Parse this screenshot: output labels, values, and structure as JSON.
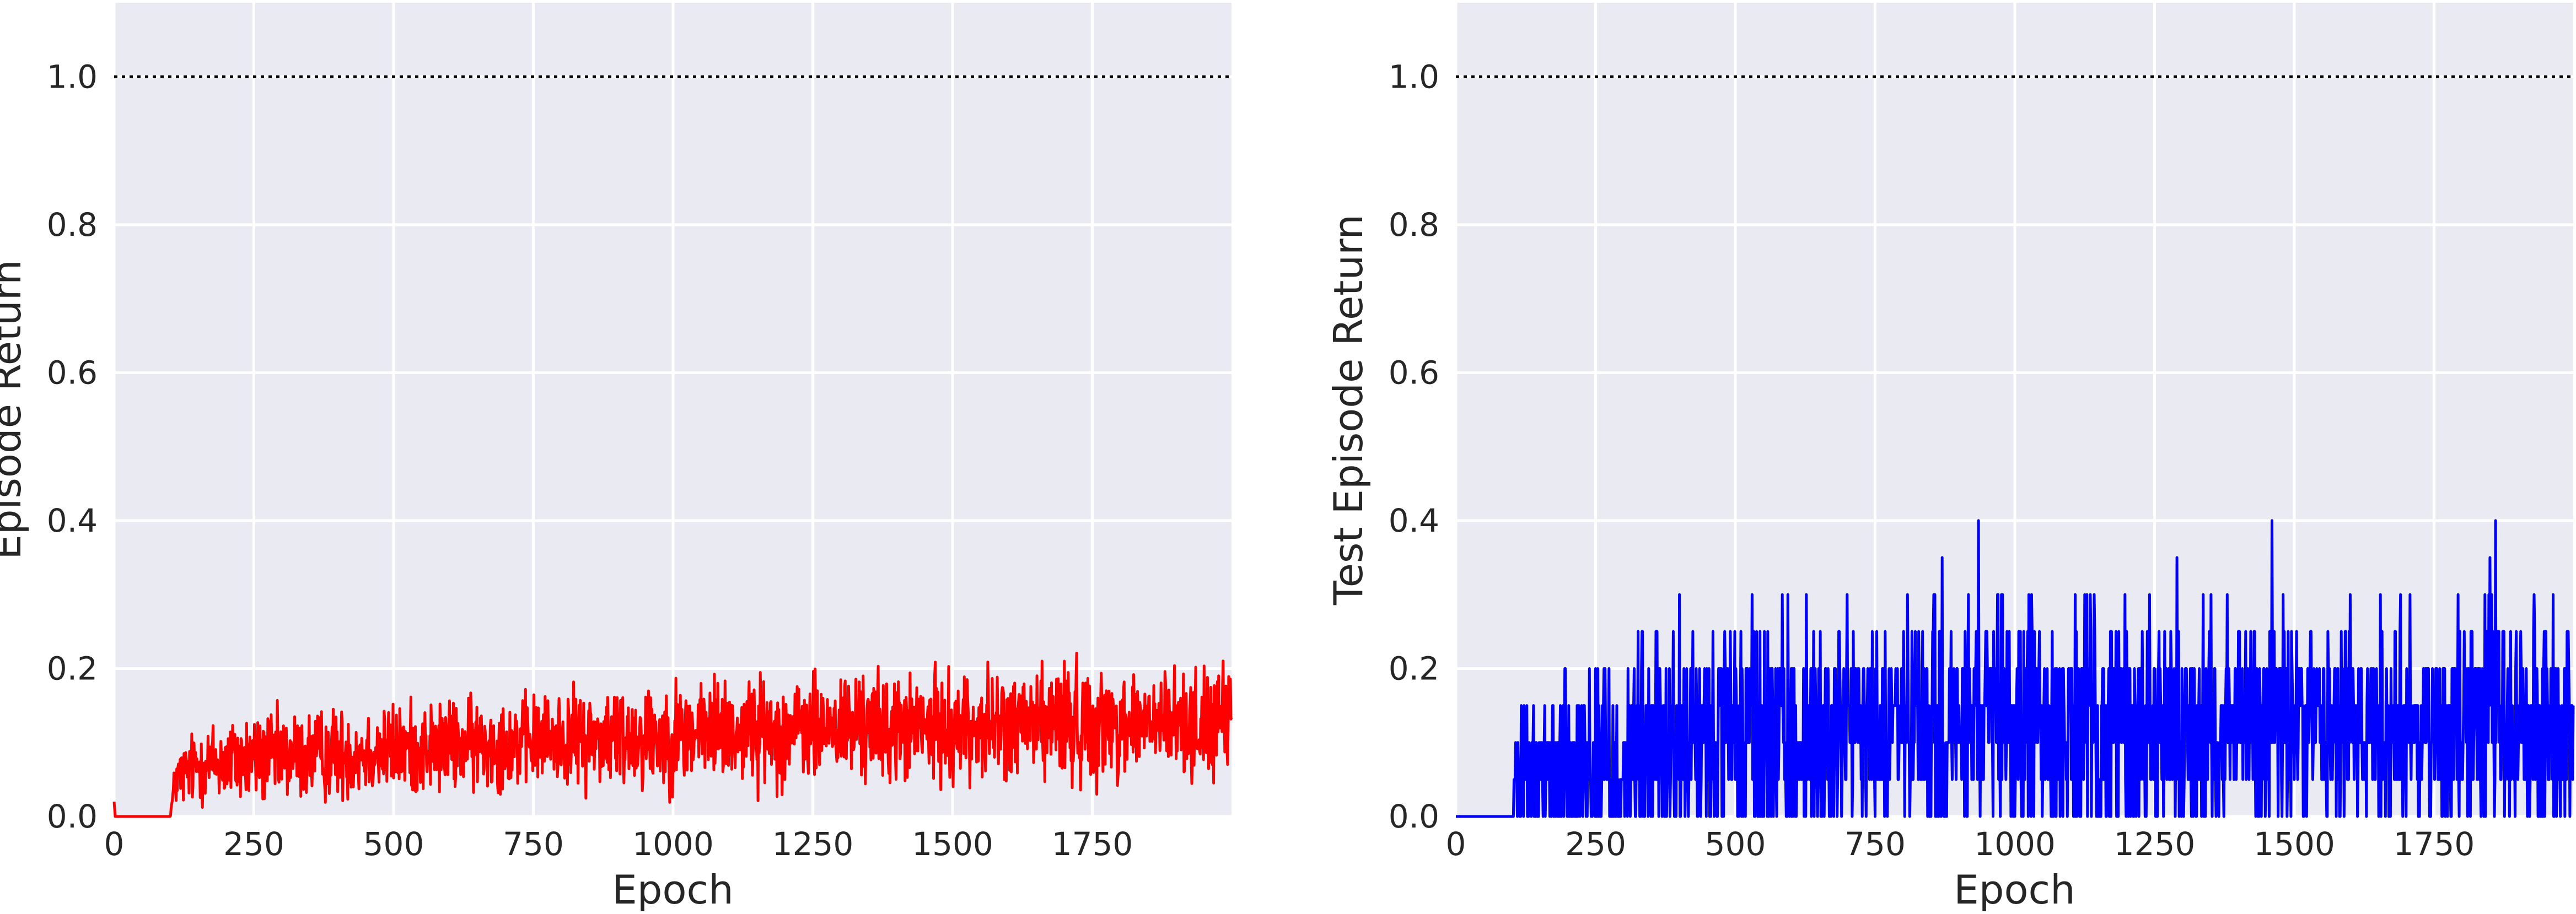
{
  "chart_data": [
    {
      "type": "line",
      "title": "",
      "xlabel": "Epoch",
      "ylabel": "Episode Return",
      "xlim": [
        0,
        1999
      ],
      "ylim": [
        0.0,
        1.1
      ],
      "xticks": [
        0,
        250,
        500,
        750,
        1000,
        1250,
        1500,
        1750
      ],
      "yticks": [
        0.0,
        0.2,
        0.4,
        0.6,
        0.8,
        1.0
      ],
      "xtick_labels": [
        "0",
        "250",
        "500",
        "750",
        "1000",
        "1250",
        "1500",
        "1750"
      ],
      "ytick_labels": [
        "0.0",
        "0.2",
        "0.4",
        "0.6",
        "0.8",
        "1.0"
      ],
      "grid": true,
      "reference_line": {
        "y": 1.0,
        "style": "dotted",
        "color": "#000000"
      },
      "series": [
        {
          "color": "#ff0000",
          "style": "noisy",
          "x": [
            0,
            2,
            4,
            100,
            110,
            150,
            200,
            300,
            400,
            500,
            600,
            700,
            800,
            900,
            1000,
            1100,
            1200,
            1300,
            1400,
            1500,
            1600,
            1700,
            1800,
            1900,
            1999
          ],
          "y": [
            0.02,
            0.0,
            0.0,
            0.0,
            0.05,
            0.07,
            0.075,
            0.08,
            0.085,
            0.09,
            0.095,
            0.1,
            0.105,
            0.108,
            0.11,
            0.115,
            0.115,
            0.12,
            0.118,
            0.12,
            0.122,
            0.125,
            0.125,
            0.125,
            0.125
          ],
          "spread": [
            0.0,
            0.0,
            0.0,
            0.0,
            0.02,
            0.025,
            0.03,
            0.03,
            0.03,
            0.03,
            0.03,
            0.03,
            0.03,
            0.035,
            0.035,
            0.035,
            0.035,
            0.035,
            0.035,
            0.035,
            0.035,
            0.04,
            0.035,
            0.035,
            0.035
          ],
          "peaks": [
            [
              1660,
              0.21
            ],
            [
              1700,
              0.21
            ],
            [
              1340,
              0.19
            ],
            [
              1080,
              0.18
            ],
            [
              1050,
              0.18
            ]
          ]
        }
      ]
    },
    {
      "type": "line",
      "title": "",
      "xlabel": "Epoch",
      "ylabel": "Test Episode Return",
      "xlim": [
        0,
        1999
      ],
      "ylim": [
        0.0,
        1.1
      ],
      "xticks": [
        0,
        250,
        500,
        750,
        1000,
        1250,
        1500,
        1750
      ],
      "yticks": [
        0.0,
        0.2,
        0.4,
        0.6,
        0.8,
        1.0
      ],
      "xtick_labels": [
        "0",
        "250",
        "500",
        "750",
        "1000",
        "1250",
        "1500",
        "1750"
      ],
      "ytick_labels": [
        "0.0",
        "0.2",
        "0.4",
        "0.6",
        "0.8",
        "1.0"
      ],
      "grid": true,
      "reference_line": {
        "y": 1.0,
        "style": "dotted",
        "color": "#000000"
      },
      "series": [
        {
          "color": "#0000ff",
          "style": "quantized",
          "step": 0.05,
          "x": [
            0,
            100,
            110,
            150,
            200,
            300,
            400,
            500,
            750,
            1000,
            1250,
            1500,
            1750,
            1999
          ],
          "y": [
            0.0,
            0.0,
            0.04,
            0.06,
            0.07,
            0.08,
            0.09,
            0.1,
            0.11,
            0.12,
            0.12,
            0.125,
            0.125,
            0.125
          ],
          "spread": [
            0.0,
            0.0,
            0.04,
            0.06,
            0.07,
            0.08,
            0.08,
            0.08,
            0.08,
            0.08,
            0.08,
            0.08,
            0.08,
            0.08
          ],
          "peaks": [
            [
              935,
              0.4
            ],
            [
              1460,
              0.4
            ],
            [
              1860,
              0.4
            ],
            [
              1850,
              0.35
            ],
            [
              1290,
              0.35
            ],
            [
              400,
              0.3
            ],
            [
              530,
              0.3
            ],
            [
              700,
              0.3
            ],
            [
              1030,
              0.3
            ],
            [
              1380,
              0.3
            ],
            [
              1600,
              0.3
            ],
            [
              1690,
              0.3
            ]
          ]
        }
      ]
    }
  ]
}
